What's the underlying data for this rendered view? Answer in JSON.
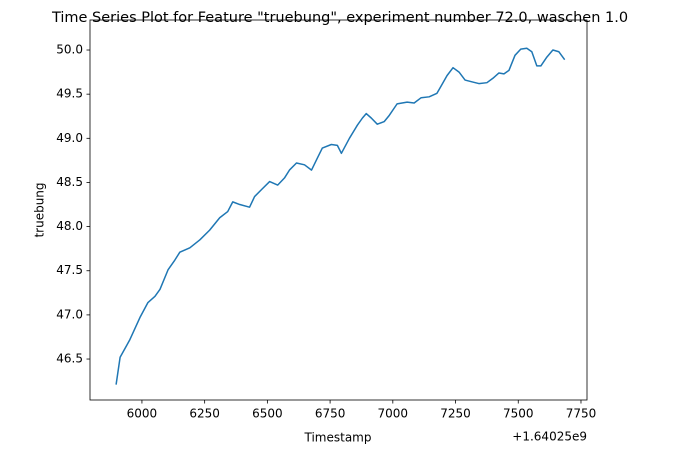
{
  "chart_data": {
    "type": "line",
    "title": "Time Series Plot for Feature \"truebung\", experiment number 72.0, waschen 1.0",
    "x_label": "Timestamp",
    "y_label": "truebung",
    "x_offset_label": "+1.64025e9",
    "color": "#1f77b4",
    "x": [
      5897,
      5913,
      5952,
      5992,
      6024,
      6052,
      6072,
      6104,
      6131,
      6151,
      6191,
      6231,
      6270,
      6310,
      6342,
      6362,
      6390,
      6429,
      6449,
      6477,
      6509,
      6541,
      6568,
      6588,
      6616,
      6648,
      6676,
      6700,
      6719,
      6755,
      6779,
      6795,
      6827,
      6859,
      6879,
      6894,
      6914,
      6938,
      6966,
      6986,
      7017,
      7057,
      7085,
      7113,
      7145,
      7176,
      7192,
      7216,
      7240,
      7264,
      7288,
      7315,
      7343,
      7375,
      7399,
      7423,
      7443,
      7463,
      7487,
      7510,
      7534,
      7554,
      7574,
      7590,
      7614,
      7638,
      7662,
      7685
    ],
    "values": [
      46.21,
      46.52,
      46.72,
      46.97,
      47.14,
      47.21,
      47.29,
      47.51,
      47.62,
      47.71,
      47.76,
      47.85,
      47.96,
      48.1,
      48.17,
      48.28,
      48.25,
      48.22,
      48.34,
      48.42,
      48.51,
      48.47,
      48.55,
      48.64,
      48.72,
      48.7,
      48.64,
      48.78,
      48.89,
      48.93,
      48.92,
      48.83,
      49.0,
      49.15,
      49.23,
      49.28,
      49.23,
      49.16,
      49.19,
      49.26,
      49.39,
      49.41,
      49.4,
      49.46,
      49.47,
      49.51,
      49.59,
      49.71,
      49.8,
      49.75,
      49.66,
      49.64,
      49.62,
      49.63,
      49.68,
      49.74,
      49.73,
      49.77,
      49.94,
      50.01,
      50.02,
      49.98,
      49.82,
      49.82,
      49.92,
      50.0,
      49.98,
      49.89
    ],
    "xlim": [
      5793,
      7774
    ],
    "ylim": [
      46.036,
      50.34
    ],
    "xticks": [
      6000,
      6250,
      6500,
      6750,
      7000,
      7250,
      7500,
      7750
    ],
    "yticks": [
      46.5,
      {
        "value": 47,
        "label": "47.0"
      },
      47.5,
      {
        "value": 48,
        "label": "48.0"
      },
      48.5,
      {
        "value": 49,
        "label": "49.0"
      },
      49.5,
      {
        "value": 50,
        "label": "50.0"
      }
    ]
  }
}
